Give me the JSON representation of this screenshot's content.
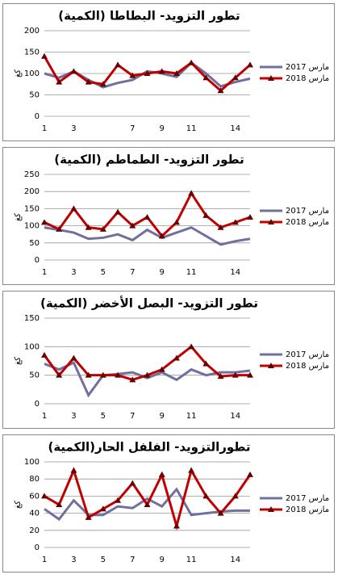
{
  "chart_data": [
    {
      "type": "line",
      "title": "تطور التزويد- البطاطا (الكمية)",
      "y_label": "كغ",
      "categories": [
        1,
        null,
        3,
        null,
        null,
        null,
        7,
        null,
        9,
        null,
        11,
        null,
        null,
        14,
        null
      ],
      "ylim": [
        0,
        200
      ],
      "yticks": [
        0,
        50,
        100,
        150,
        200
      ],
      "grid": true,
      "series": [
        {
          "name": "مارس 2017",
          "color": "#7070a0",
          "values": [
            100,
            90,
            105,
            85,
            68,
            78,
            85,
            105,
            100,
            92,
            125,
            100,
            70,
            80,
            88
          ]
        },
        {
          "name": "مارس 2018",
          "color": "#c00000",
          "marker": "triangle",
          "values": [
            140,
            80,
            105,
            80,
            75,
            120,
            95,
            100,
            105,
            100,
            125,
            90,
            60,
            90,
            120
          ]
        }
      ]
    },
    {
      "type": "line",
      "title": "تطور التزويد- الطماطم (الكمية)",
      "y_label": "كغ",
      "categories": [
        1,
        null,
        3,
        null,
        5,
        null,
        7,
        null,
        9,
        null,
        11,
        null,
        null,
        14,
        null
      ],
      "ylim": [
        0,
        250
      ],
      "yticks": [
        0,
        50,
        100,
        150,
        200,
        250
      ],
      "grid": true,
      "series": [
        {
          "name": "مارس 2017",
          "color": "#7070a0",
          "values": [
            95,
            88,
            80,
            62,
            65,
            75,
            58,
            88,
            65,
            80,
            95,
            70,
            45,
            55,
            62
          ]
        },
        {
          "name": "مارس 2018",
          "color": "#c00000",
          "marker": "triangle",
          "values": [
            110,
            90,
            150,
            95,
            90,
            140,
            100,
            125,
            70,
            110,
            195,
            130,
            95,
            110,
            125
          ]
        }
      ]
    },
    {
      "type": "line",
      "title": "تطور التزويد- البصل الأخضر (الكمية)",
      "y_label": "كغ",
      "categories": [
        1,
        null,
        3,
        null,
        5,
        null,
        7,
        null,
        9,
        null,
        11,
        null,
        null,
        14,
        null
      ],
      "ylim": [
        0,
        150
      ],
      "yticks": [
        0,
        50,
        100,
        150
      ],
      "grid": true,
      "series": [
        {
          "name": "مارس 2017",
          "color": "#7070a0",
          "values": [
            70,
            60,
            72,
            15,
            50,
            52,
            55,
            45,
            55,
            42,
            60,
            50,
            55,
            55,
            58
          ]
        },
        {
          "name": "مارس 2018",
          "color": "#c00000",
          "marker": "triangle",
          "values": [
            85,
            50,
            80,
            50,
            50,
            50,
            42,
            50,
            60,
            80,
            100,
            70,
            48,
            50,
            50
          ]
        }
      ]
    },
    {
      "type": "line",
      "title": "تطورالتزويد- الفلفل الحار(الكمية)",
      "y_label": "كغ",
      "categories": [
        1,
        null,
        3,
        null,
        5,
        null,
        7,
        null,
        9,
        null,
        11,
        null,
        null,
        14,
        null
      ],
      "ylim": [
        0,
        100
      ],
      "yticks": [
        0,
        20,
        40,
        60,
        80,
        100
      ],
      "grid": true,
      "series": [
        {
          "name": "مارس 2017",
          "color": "#7070a0",
          "values": [
            45,
            33,
            55,
            38,
            38,
            48,
            46,
            57,
            48,
            68,
            38,
            40,
            42,
            43,
            43
          ]
        },
        {
          "name": "مارس 2018",
          "color": "#c00000",
          "marker": "triangle",
          "values": [
            60,
            50,
            90,
            35,
            45,
            55,
            75,
            50,
            85,
            25,
            90,
            60,
            40,
            60,
            85
          ]
        }
      ]
    }
  ]
}
